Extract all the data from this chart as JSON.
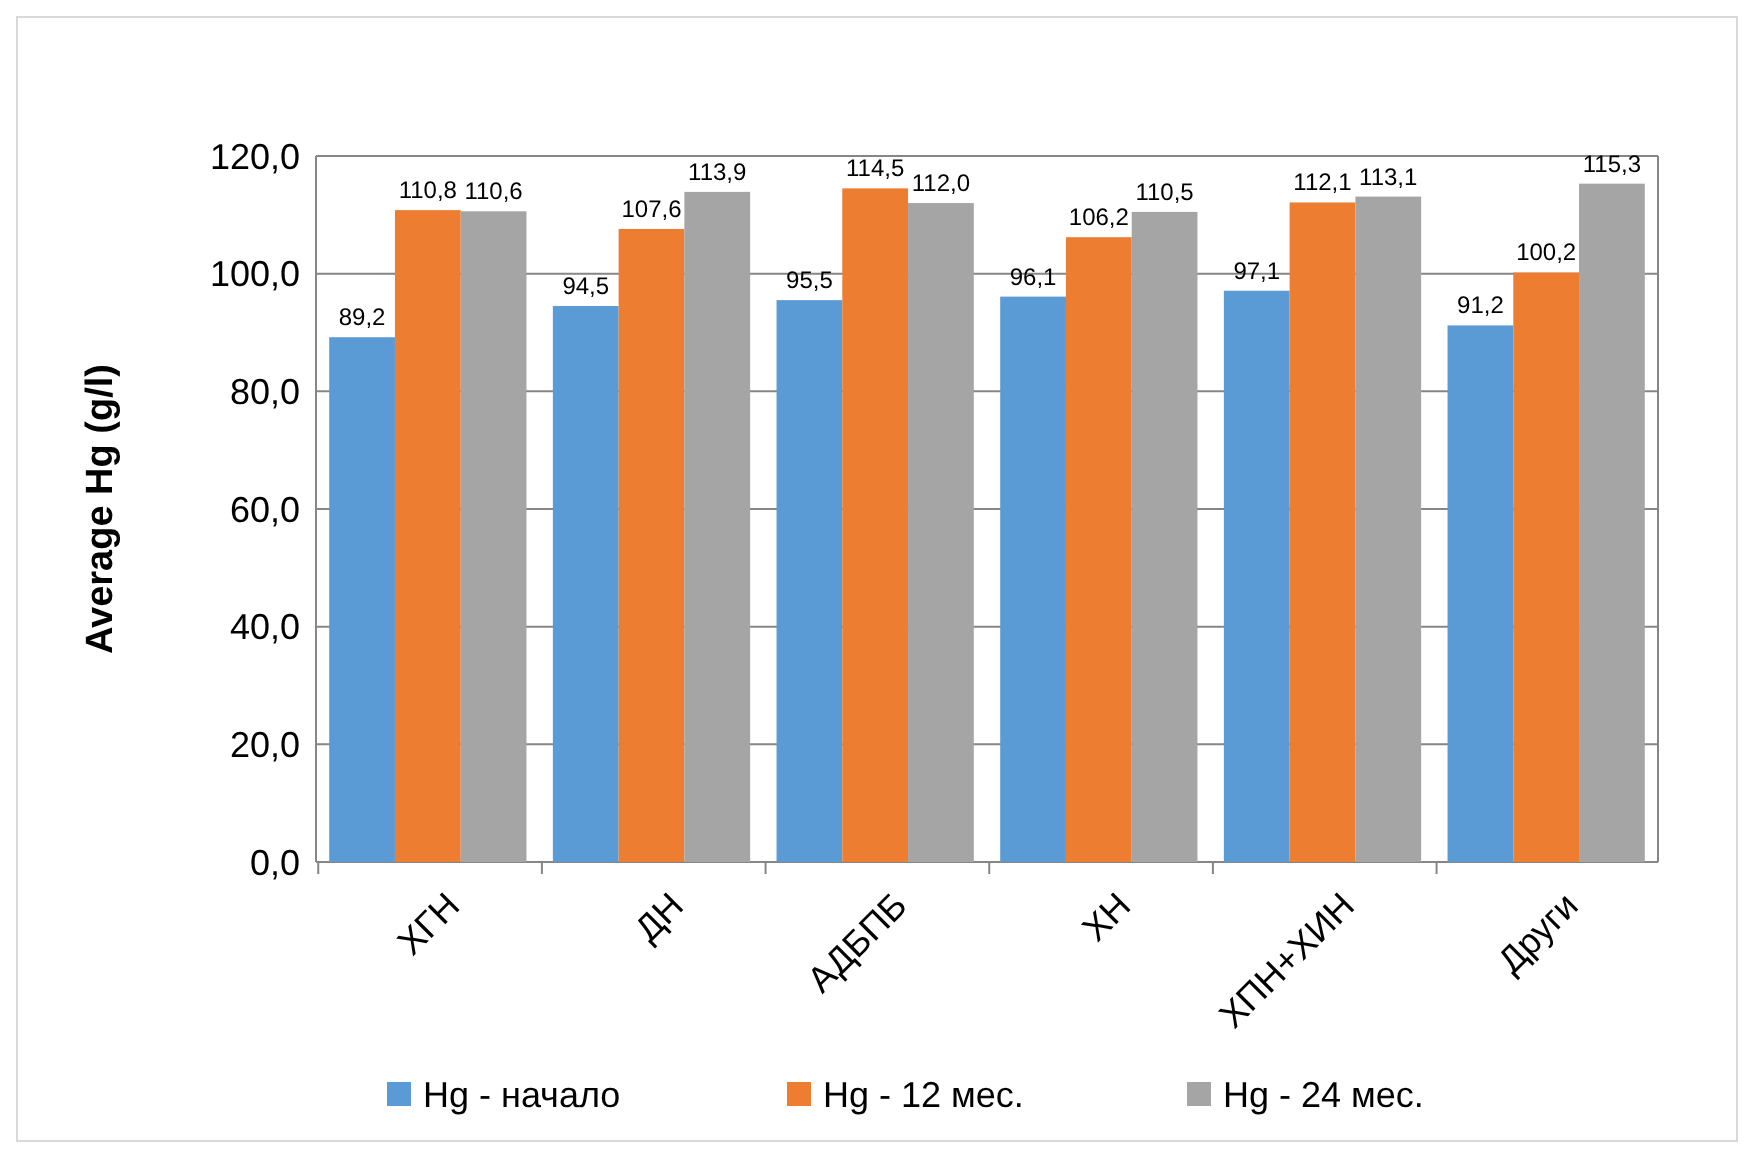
{
  "chart_data": {
    "type": "bar",
    "ylabel": "Average Hg (g/l)",
    "categories": [
      "ХГН",
      "ДН",
      "АДБПБ",
      "ХН",
      "ХПН+ХИН",
      "Други"
    ],
    "series": [
      {
        "name": "Hg - начало",
        "color": "#5b9bd5",
        "values": [
          89.2,
          94.5,
          95.5,
          96.1,
          97.1,
          91.2
        ],
        "value_labels": [
          "89,2",
          "94,5",
          "95,5",
          "96,1",
          "97,1",
          "91,2"
        ]
      },
      {
        "name": "Hg - 12 мес.",
        "color": "#ed7d31",
        "values": [
          110.8,
          107.6,
          114.5,
          106.2,
          112.1,
          100.2
        ],
        "value_labels": [
          "110,8",
          "107,6",
          "114,5",
          "106,2",
          "112,1",
          "100,2"
        ]
      },
      {
        "name": "Hg - 24 мес.",
        "color": "#a5a5a5",
        "values": [
          110.6,
          113.9,
          112.0,
          110.5,
          113.1,
          115.3
        ],
        "value_labels": [
          "110,6",
          "113,9",
          "112,0",
          "110,5",
          "113,1",
          "115,3"
        ]
      }
    ],
    "ylim": [
      0,
      120
    ],
    "yticks": [
      {
        "value": 0,
        "label": "0,0"
      },
      {
        "value": 20,
        "label": "20,0"
      },
      {
        "value": 40,
        "label": "40,0"
      },
      {
        "value": 60,
        "label": "60,0"
      },
      {
        "value": 80,
        "label": "80,0"
      },
      {
        "value": 100,
        "label": "100,0"
      },
      {
        "value": 120,
        "label": "120,0"
      }
    ],
    "grid": "y",
    "legend": "bottom"
  }
}
